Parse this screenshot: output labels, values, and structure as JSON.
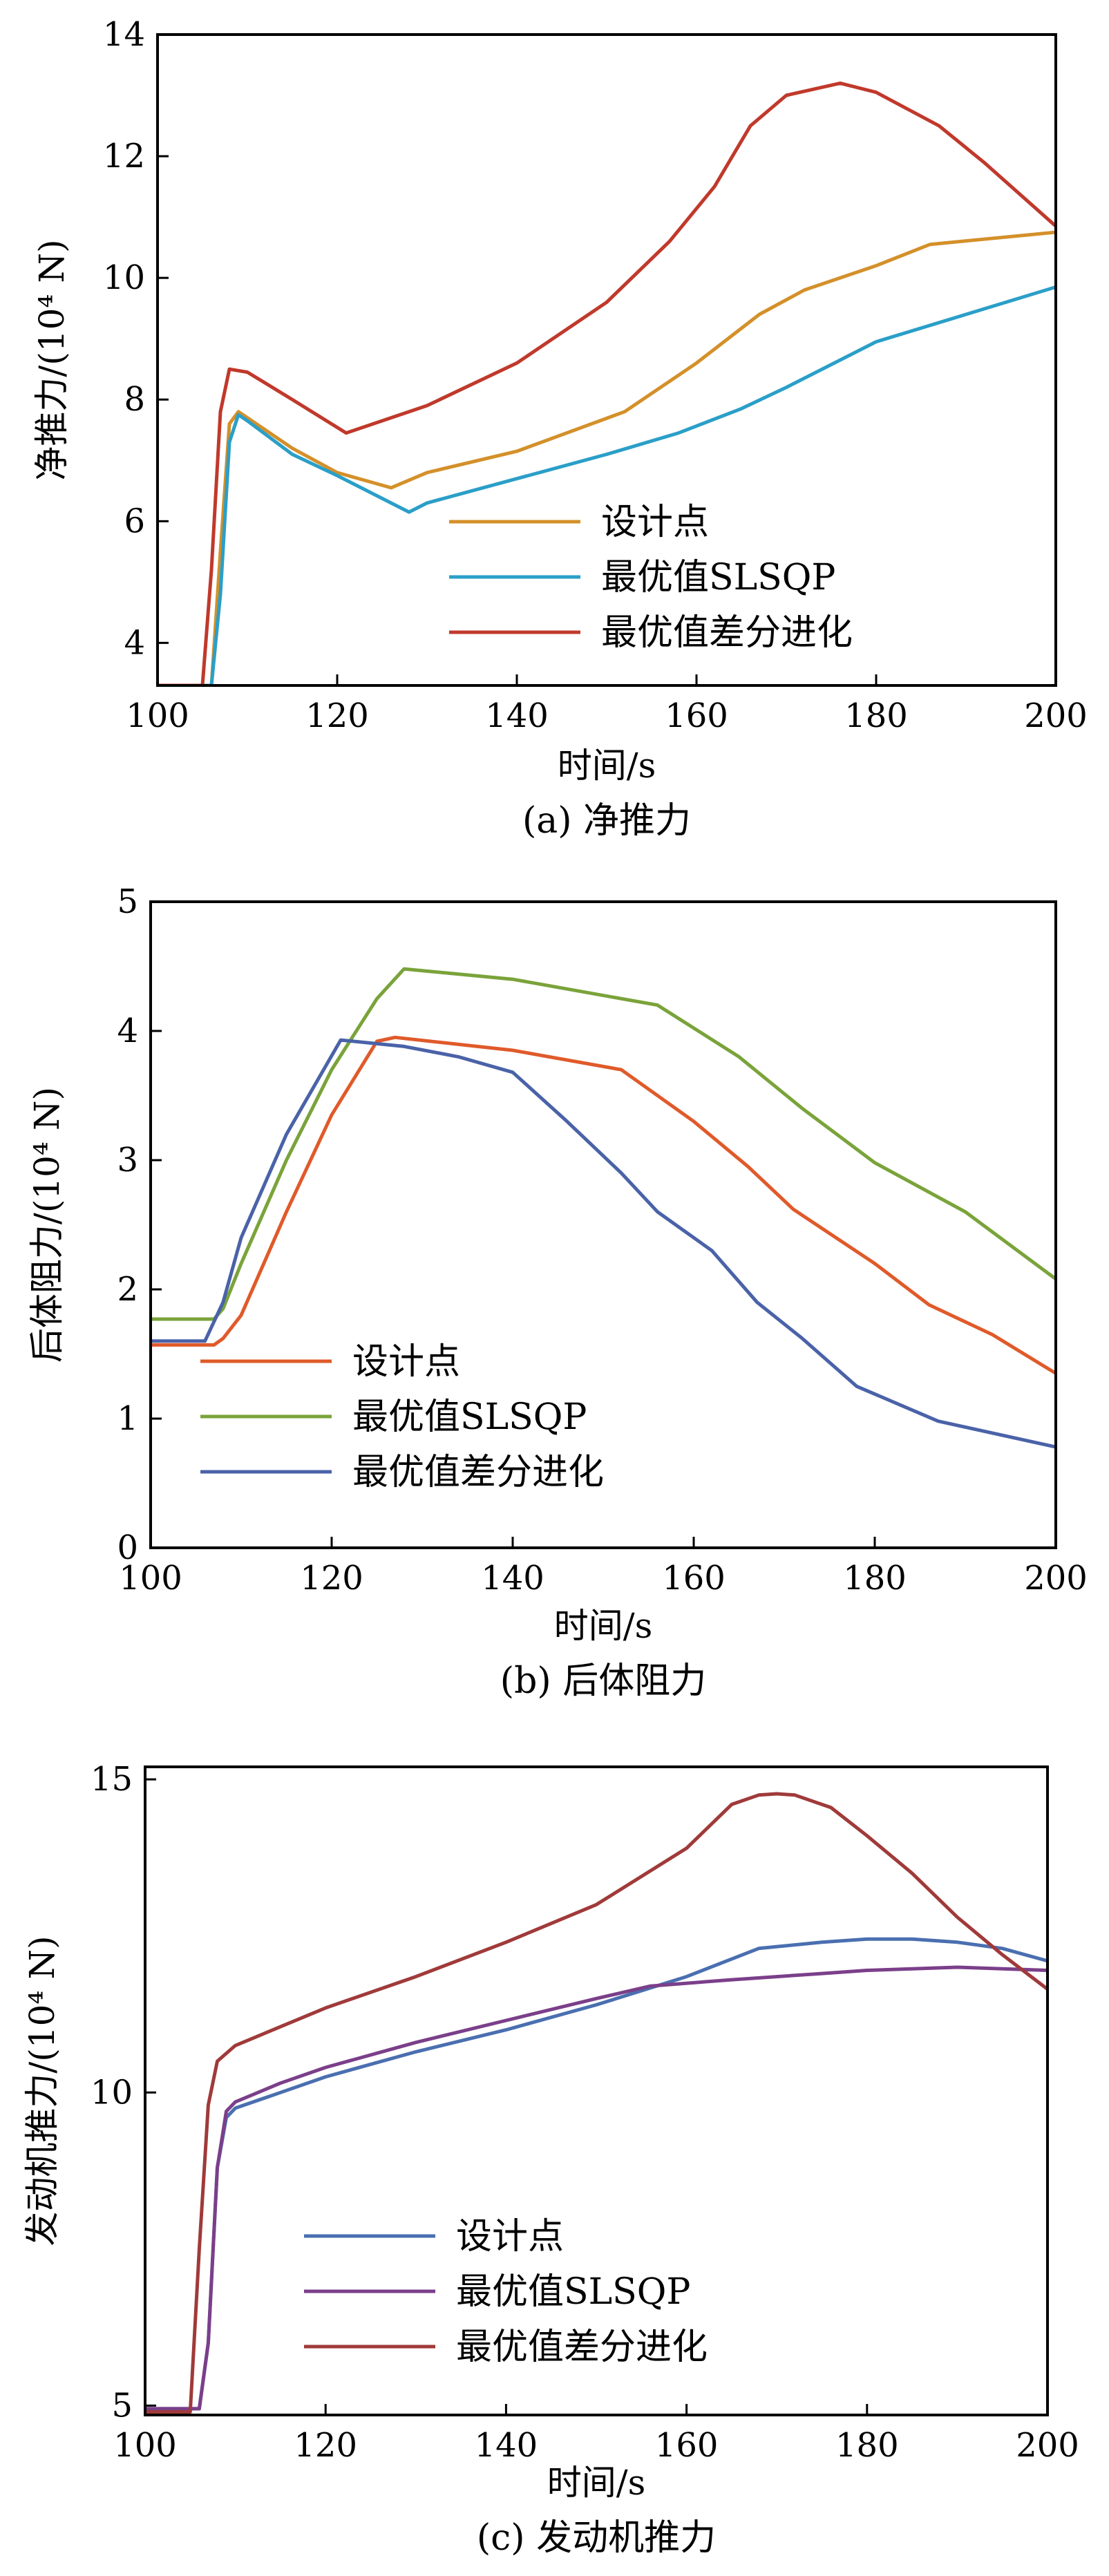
{
  "chart_data": [
    {
      "type": "line",
      "title": "",
      "caption": "(a) 净推力",
      "xlabel": "时间/s",
      "ylabel": "净推力/(10⁴ N)",
      "xlim": [
        100,
        200
      ],
      "ylim": [
        3.3,
        14
      ],
      "xticks": [
        100,
        120,
        140,
        160,
        180,
        200
      ],
      "yticks": [
        4,
        6,
        8,
        10,
        12,
        14
      ],
      "legend_position": "bottom-center",
      "series": [
        {
          "name": "设计点",
          "color": "#d4902a",
          "x": [
            100,
            106,
            107,
            108,
            109,
            110,
            115,
            120,
            126,
            130,
            140,
            152,
            160,
            167,
            172,
            180,
            186,
            200
          ],
          "y": [
            3.3,
            3.3,
            5.5,
            7.6,
            7.8,
            7.7,
            7.2,
            6.8,
            6.55,
            6.8,
            7.15,
            7.8,
            8.6,
            9.4,
            9.8,
            10.2,
            10.55,
            10.75
          ]
        },
        {
          "name": "最优值SLSQP",
          "color": "#2a9fc8",
          "x": [
            100,
            106,
            107,
            108,
            109,
            110,
            115,
            120,
            128,
            130,
            140,
            150,
            158,
            165,
            170,
            180,
            190,
            200
          ],
          "y": [
            3.3,
            3.3,
            4.8,
            7.3,
            7.75,
            7.65,
            7.1,
            6.75,
            6.15,
            6.3,
            6.7,
            7.1,
            7.45,
            7.85,
            8.2,
            8.95,
            9.4,
            9.85
          ]
        },
        {
          "name": "最优值差分进化",
          "color": "#c0392b",
          "x": [
            100,
            105,
            106,
            107,
            108,
            110,
            115,
            121,
            130,
            140,
            150,
            157,
            162,
            166,
            170,
            176,
            180,
            187,
            192,
            200
          ],
          "y": [
            3.3,
            3.3,
            5.2,
            7.8,
            8.5,
            8.45,
            8.0,
            7.45,
            7.9,
            8.6,
            9.6,
            10.6,
            11.5,
            12.5,
            13.0,
            13.2,
            13.05,
            12.5,
            11.9,
            10.85
          ]
        }
      ]
    },
    {
      "type": "line",
      "title": "",
      "caption": "(b) 后体阻力",
      "xlabel": "时间/s",
      "ylabel": "后体阻力/(10⁴ N)",
      "xlim": [
        100,
        200
      ],
      "ylim": [
        0,
        5
      ],
      "xticks": [
        100,
        120,
        140,
        160,
        180,
        200
      ],
      "yticks": [
        0,
        1,
        2,
        3,
        4,
        5
      ],
      "legend_position": "bottom-left",
      "series": [
        {
          "name": "设计点",
          "color": "#e05a2a",
          "x": [
            100,
            107,
            108,
            110,
            115,
            120,
            125,
            127,
            140,
            152,
            160,
            166,
            171,
            180,
            186,
            193,
            200
          ],
          "y": [
            1.57,
            1.57,
            1.62,
            1.8,
            2.6,
            3.35,
            3.92,
            3.95,
            3.85,
            3.7,
            3.3,
            2.95,
            2.62,
            2.2,
            1.88,
            1.65,
            1.35
          ]
        },
        {
          "name": "最优值SLSQP",
          "color": "#7aa33a",
          "x": [
            100,
            107,
            108,
            110,
            115,
            120,
            125,
            128,
            140,
            156,
            165,
            172,
            180,
            190,
            200
          ],
          "y": [
            1.77,
            1.77,
            1.85,
            2.2,
            3.0,
            3.7,
            4.25,
            4.48,
            4.4,
            4.2,
            3.8,
            3.4,
            2.98,
            2.6,
            2.08
          ]
        },
        {
          "name": "最优值差分进化",
          "color": "#4a62a8",
          "x": [
            100,
            106,
            108,
            110,
            115,
            121,
            128,
            134,
            140,
            146,
            152,
            156,
            162,
            167,
            172,
            178,
            187,
            200
          ],
          "y": [
            1.6,
            1.6,
            1.9,
            2.4,
            3.2,
            3.93,
            3.88,
            3.8,
            3.68,
            3.3,
            2.9,
            2.6,
            2.3,
            1.9,
            1.62,
            1.25,
            0.98,
            0.78
          ]
        }
      ]
    },
    {
      "type": "line",
      "title": "",
      "caption": "(c) 发动机推力",
      "xlabel": "时间/s",
      "ylabel": "发动机推力/(10⁴ N)",
      "xlim": [
        100,
        200
      ],
      "ylim": [
        4.85,
        15.2
      ],
      "xticks": [
        100,
        120,
        140,
        160,
        180,
        200
      ],
      "yticks": [
        5,
        10,
        15
      ],
      "legend_position": "bottom-center",
      "series": [
        {
          "name": "设计点",
          "color": "#4a6fb0",
          "x": [
            100,
            106,
            107,
            108,
            109,
            110,
            115,
            120,
            130,
            140,
            150,
            160,
            168,
            175,
            180,
            185,
            190,
            195,
            200
          ],
          "y": [
            4.95,
            4.95,
            6.0,
            8.8,
            9.6,
            9.75,
            10.0,
            10.25,
            10.65,
            11.0,
            11.4,
            11.85,
            12.3,
            12.4,
            12.45,
            12.45,
            12.4,
            12.3,
            12.1
          ]
        },
        {
          "name": "最优值SLSQP",
          "color": "#7b3f8a",
          "x": [
            100,
            106,
            107,
            108,
            109,
            110,
            115,
            120,
            130,
            140,
            150,
            156,
            165,
            175,
            180,
            190,
            200
          ],
          "y": [
            4.95,
            4.95,
            6.0,
            8.8,
            9.7,
            9.85,
            10.15,
            10.4,
            10.8,
            11.15,
            11.5,
            11.7,
            11.8,
            11.9,
            11.95,
            12.0,
            11.95
          ]
        },
        {
          "name": "最优值差分进化",
          "color": "#a03a3a",
          "x": [
            100,
            105,
            106,
            107,
            108,
            110,
            115,
            120,
            130,
            140,
            150,
            160,
            165,
            168,
            170,
            172,
            176,
            180,
            185,
            190,
            195,
            200
          ],
          "y": [
            4.9,
            4.9,
            7.5,
            9.8,
            10.5,
            10.75,
            11.05,
            11.35,
            11.85,
            12.4,
            13.0,
            13.9,
            14.6,
            14.75,
            14.77,
            14.75,
            14.55,
            14.1,
            13.5,
            12.8,
            12.2,
            11.65
          ]
        }
      ]
    }
  ]
}
